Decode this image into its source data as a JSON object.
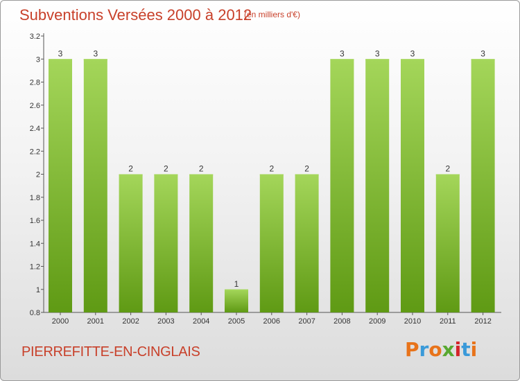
{
  "header": {
    "title": "Subventions Versées 2000 à 2012",
    "subtitle": "(en milliers d'€)"
  },
  "footer": {
    "commune": "PIERREFITTE-EN-CINGLAIS",
    "logo_text": "Proxiti"
  },
  "colors": {
    "title": "#c8402a",
    "bar_light": "#a4d65a",
    "bar_dark": "#5f9a14",
    "logo_letters": [
      "#e8731a",
      "#3a9ad9",
      "#e8731a",
      "#58a830",
      "#d4242a",
      "#3a9ad9",
      "#e8731a"
    ]
  },
  "chart_data": {
    "type": "bar",
    "categories": [
      "2000",
      "2001",
      "2002",
      "2003",
      "2004",
      "2005",
      "2006",
      "2007",
      "2008",
      "2009",
      "2010",
      "2011",
      "2012"
    ],
    "values": [
      3,
      3,
      2,
      2,
      2,
      1,
      2,
      2,
      3,
      3,
      3,
      2,
      3
    ],
    "value_labels": [
      "3",
      "3",
      "2",
      "2",
      "2",
      "1",
      "2",
      "2",
      "3",
      "3",
      "3",
      "2",
      "3"
    ],
    "ylim": [
      0.8,
      3.2
    ],
    "yticks": [
      0.8,
      1,
      1.2,
      1.4,
      1.6,
      1.8,
      2,
      2.2,
      2.4,
      2.6,
      2.8,
      3,
      3.2
    ],
    "ytick_labels": [
      "0.8",
      "1",
      "1.2",
      "1.4",
      "1.6",
      "1.8",
      "2",
      "2.2",
      "2.4",
      "2.6",
      "2.8",
      "3",
      "3.2"
    ],
    "grid": false,
    "legend": "none"
  }
}
